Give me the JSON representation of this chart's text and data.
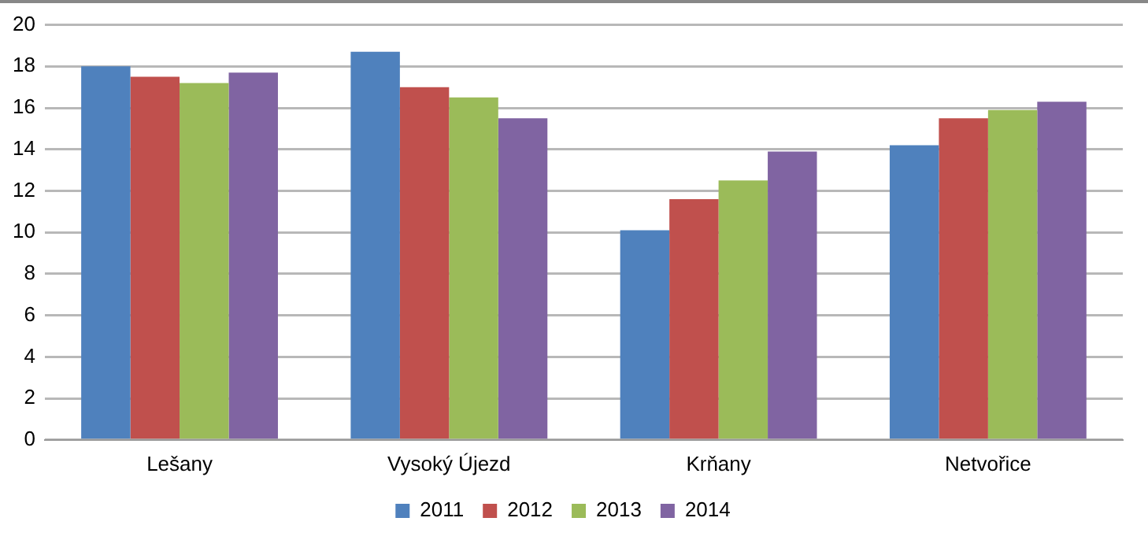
{
  "chart_data": {
    "type": "bar",
    "categories": [
      "Lešany",
      "Vysoký Újezd",
      "Krňany",
      "Netvořice"
    ],
    "series": [
      {
        "name": "2011",
        "color": "#4f81bd",
        "values": [
          18.0,
          18.7,
          10.1,
          14.2
        ]
      },
      {
        "name": "2012",
        "color": "#c0504d",
        "values": [
          17.5,
          17.0,
          11.6,
          15.5
        ]
      },
      {
        "name": "2013",
        "color": "#9bbb59",
        "values": [
          17.2,
          16.5,
          12.5,
          15.9
        ]
      },
      {
        "name": "2014",
        "color": "#8064a2",
        "values": [
          17.7,
          15.5,
          13.9,
          16.3
        ]
      }
    ],
    "ylim": [
      0,
      20
    ],
    "yticks": [
      0,
      2,
      4,
      6,
      8,
      10,
      12,
      14,
      16,
      18,
      20
    ],
    "grid": "y",
    "legend": "bottom"
  }
}
